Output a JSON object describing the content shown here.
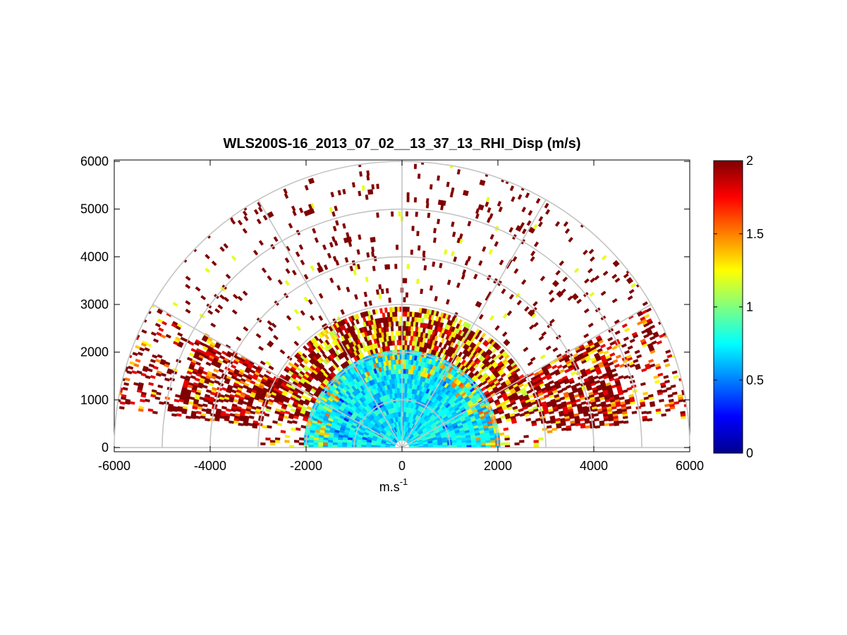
{
  "chart_data": {
    "type": "heatmap",
    "subtype": "polar-rhi-sector",
    "title": "WLS200S-16_2013_07_02__13_37_13_RHI_Disp (m/s)",
    "xlabel_base": "m.s",
    "xlabel_exp": "-1",
    "ylabel": "",
    "xlim": [
      -6000,
      6000
    ],
    "ylim": [
      0,
      6000
    ],
    "x_ticks": [
      -6000,
      -4000,
      -2000,
      0,
      2000,
      4000,
      6000
    ],
    "y_ticks": [
      0,
      1000,
      2000,
      3000,
      4000,
      5000,
      6000
    ],
    "x_tick_labels": [
      "-6000",
      "-4000",
      "-2000",
      "0",
      "2000",
      "4000",
      "6000"
    ],
    "y_tick_labels": [
      "0",
      "1000",
      "2000",
      "3000",
      "4000",
      "5000",
      "6000"
    ],
    "polar_grid": {
      "range_rings": [
        1000,
        2000,
        3000,
        4000,
        5000,
        6000
      ],
      "spoke_angles_deg": [
        0,
        30,
        60,
        90,
        120,
        150,
        180
      ]
    },
    "colorbar": {
      "colormap": "jet",
      "range": [
        0,
        2
      ],
      "ticks": [
        0,
        0.5,
        1,
        1.5,
        2
      ],
      "tick_labels": [
        "0",
        "0.5",
        "1",
        "1.5",
        "2"
      ]
    },
    "field": {
      "description_regions": [
        {
          "range_m": [
            0,
            2000
          ],
          "elevation_deg": [
            0,
            180
          ],
          "value_typical": 0.75
        },
        {
          "range_m": [
            2000,
            3000
          ],
          "elevation_deg": [
            10,
            170
          ],
          "value_typical": 1.3
        },
        {
          "range_m": [
            3000,
            5800
          ],
          "elevation_deg": [
            8,
            30
          ],
          "value_typical": 2.0
        },
        {
          "range_m": [
            3000,
            5800
          ],
          "elevation_deg": [
            150,
            172
          ],
          "value_typical": 1.8
        },
        {
          "range_m": [
            2500,
            6000
          ],
          "elevation_deg": [
            30,
            150
          ],
          "value_typical": 2.0,
          "sparse": true
        }
      ]
    }
  }
}
